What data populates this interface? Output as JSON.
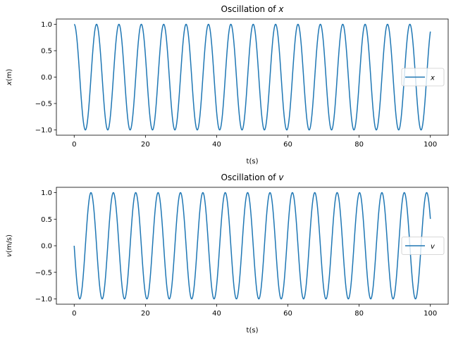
{
  "chart_data": [
    {
      "type": "line",
      "title_text": "Oscillation of ",
      "title_var": "x",
      "xlabel": "t(s)",
      "ylabel_var": "x",
      "ylabel_unit": "(m)",
      "xlim": [
        -5,
        105
      ],
      "ylim": [
        -1.1,
        1.1
      ],
      "xticks": [
        0,
        20,
        40,
        60,
        80,
        100
      ],
      "yticks": [
        -1.0,
        -0.5,
        0.0,
        0.5,
        1.0
      ],
      "xtick_labels": [
        "0",
        "20",
        "40",
        "60",
        "80",
        "100"
      ],
      "ytick_labels": [
        "−1.0",
        "−0.5",
        "0.0",
        "0.5",
        "1.0"
      ],
      "legend_position": "center-right",
      "series": [
        {
          "name": "x",
          "color": "#1f77b4",
          "function": "cos(t)",
          "t_range": [
            0,
            100
          ]
        }
      ]
    },
    {
      "type": "line",
      "title_text": "Oscillation of ",
      "title_var": "v",
      "xlabel": "t(s)",
      "ylabel_var": "v",
      "ylabel_unit": "(m/s)",
      "xlim": [
        -5,
        105
      ],
      "ylim": [
        -1.1,
        1.1
      ],
      "xticks": [
        0,
        20,
        40,
        60,
        80,
        100
      ],
      "yticks": [
        -1.0,
        -0.5,
        0.0,
        0.5,
        1.0
      ],
      "xtick_labels": [
        "0",
        "20",
        "40",
        "60",
        "80",
        "100"
      ],
      "ytick_labels": [
        "−1.0",
        "−0.5",
        "0.0",
        "0.5",
        "1.0"
      ],
      "legend_position": "center-right",
      "series": [
        {
          "name": "v",
          "color": "#1f77b4",
          "function": "-sin(t)",
          "t_range": [
            0,
            100
          ]
        }
      ]
    }
  ]
}
